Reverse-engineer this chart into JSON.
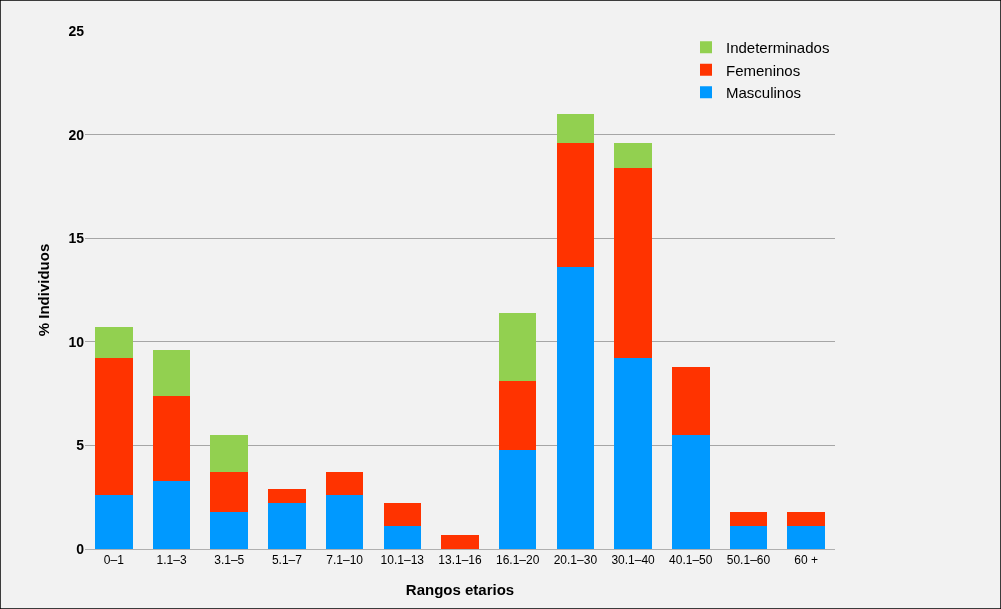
{
  "chart_data": {
    "type": "bar",
    "stacked": true,
    "xlabel": "Rangos etarios",
    "ylabel": "% Individuos",
    "categories": [
      "0–1",
      "1.1–3",
      "3.1–5",
      "5.1–7",
      "7.1–10",
      "10.1–13",
      "13.1–16",
      "16.1–20",
      "20.1–30",
      "30.1–40",
      "40.1–50",
      "50.1–60",
      "60 +"
    ],
    "series": [
      {
        "name": "Masculinos",
        "color": "#0099ff",
        "values": [
          2.6,
          3.3,
          1.8,
          2.2,
          2.6,
          1.1,
          null,
          4.8,
          13.6,
          9.2,
          5.5,
          1.1,
          1.1
        ]
      },
      {
        "name": "Femeninos",
        "color": "#ff3300",
        "values": [
          6.6,
          4.1,
          1.9,
          0.7,
          1.1,
          1.1,
          0.7,
          3.3,
          6.0,
          9.2,
          3.3,
          0.7,
          0.7
        ]
      },
      {
        "name": "Indeterminados",
        "color": "#92d050",
        "values": [
          1.5,
          2.2,
          1.8,
          null,
          null,
          null,
          null,
          3.3,
          1.4,
          1.2,
          null,
          null,
          null
        ]
      }
    ],
    "ylim": [
      0,
      25
    ],
    "yticks": [
      0,
      5,
      10,
      15,
      20,
      25
    ],
    "grid": "y",
    "legend": "top right"
  }
}
